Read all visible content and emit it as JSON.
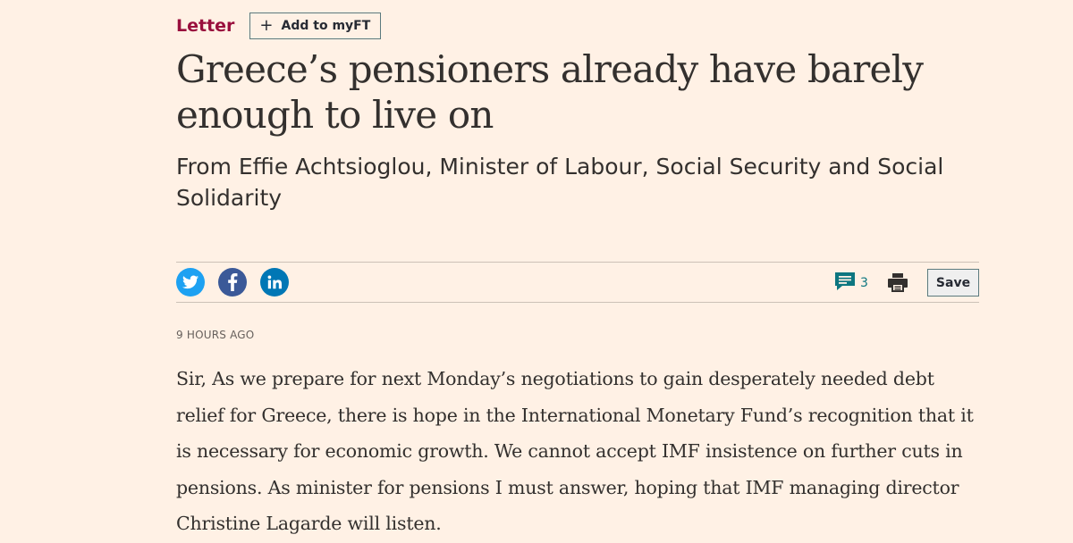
{
  "article": {
    "kicker": "Letter",
    "myft_label": "Add to myFT",
    "headline": "Greece’s pensioners already have barely enough to live on",
    "standfirst": "From Effie Achtsioglou, Minister of Labour, Social Security and Social Solidarity",
    "timestamp": "9 HOURS AGO",
    "body": "Sir, As we prepare for next Monday’s negotiations to gain desperately needed debt relief for Greece, there is hope in the International Monetary Fund’s recognition that it is necessary for economic growth. We cannot accept IMF insistence on further cuts in pensions. As minister for pensions I must answer, hoping that IMF managing director Christine Lagarde will listen."
  },
  "toolbar": {
    "share_icons": [
      "twitter-icon",
      "facebook-icon",
      "linkedin-icon"
    ],
    "comment_count": "3",
    "save_label": "Save"
  },
  "colors": {
    "background": "#fff1e5",
    "kicker": "#990f3d",
    "text": "#33302e",
    "twitter": "#1da1f2",
    "facebook": "#3b5998",
    "linkedin": "#0077b5",
    "comment": "#0d7680"
  }
}
